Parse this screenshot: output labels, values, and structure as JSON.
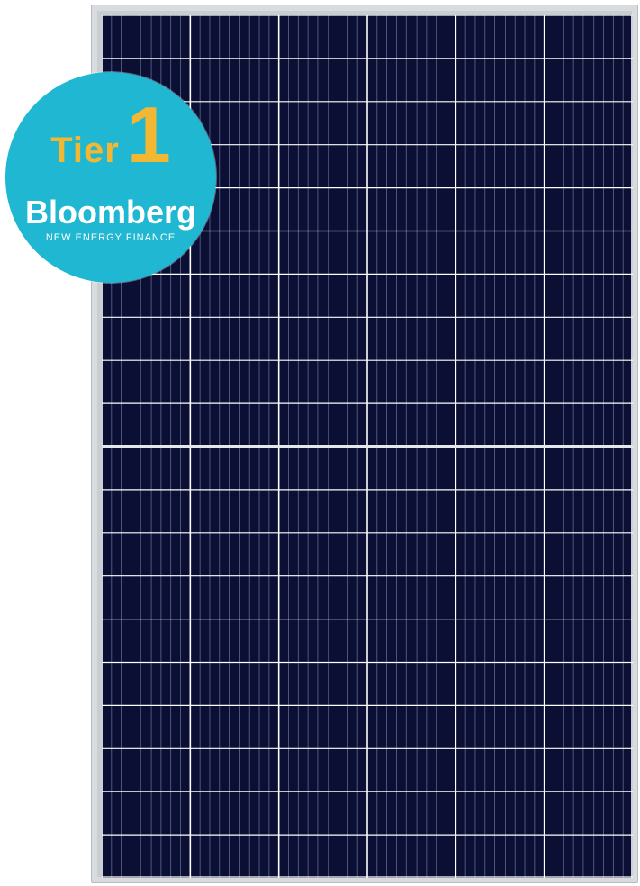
{
  "badge": {
    "tier_word": "Tier",
    "tier_number": "1",
    "brand": "Bloomberg",
    "subtitle": "NEW ENERGY FINANCE",
    "background_color": "#1fb7d1",
    "tier_color": "#f2b733",
    "text_color": "#ffffff"
  },
  "panel": {
    "frame_color": "#d9dcdf",
    "cell_color": "#0a0f33",
    "gridline_color": "#ffffff",
    "cell_columns": 6,
    "cell_rows": 20
  }
}
